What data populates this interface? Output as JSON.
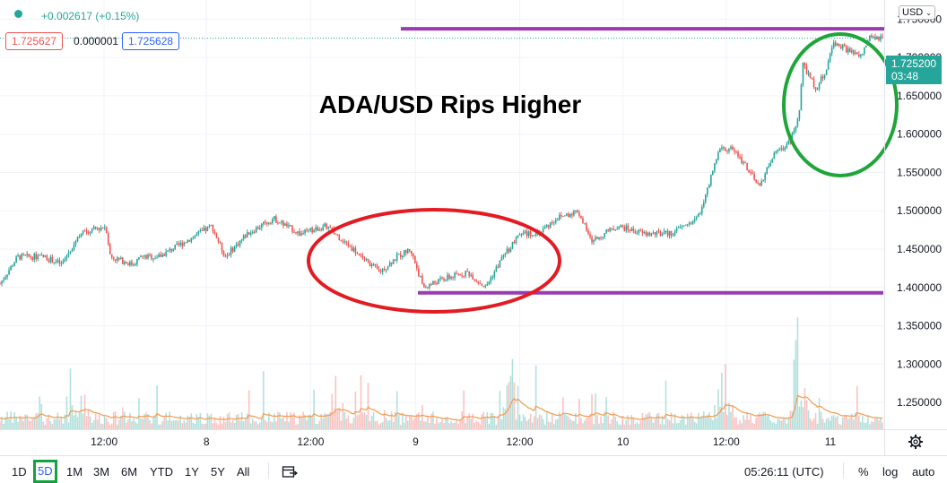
{
  "header": {
    "change": "+0.002617 (+0.15%)",
    "bid": "1.725627",
    "spread": "0.000001",
    "ask": "1.725628"
  },
  "currency": "USD",
  "price_tag": {
    "price": "1.725200",
    "countdown": "03:48"
  },
  "colors": {
    "up": "#26a69a",
    "down": "#ef5350",
    "red_circle": "#e31b23",
    "green_circle": "#1fa53a",
    "level_line": "#9b3bb0",
    "volume_ma": "#f29a4a"
  },
  "chart_data": {
    "type": "candlestick",
    "title": "ADA/USD Rips Higher",
    "x_ticks": [
      "12:00",
      "8",
      "12:00",
      "9",
      "12:00",
      "10",
      "12:00",
      "11"
    ],
    "y_ticks": [
      "1.750000",
      "1.700000",
      "1.650000",
      "1.600000",
      "1.550000",
      "1.500000",
      "1.450000",
      "1.400000",
      "1.350000",
      "1.300000",
      "1.250000"
    ],
    "ylim": [
      1.215,
      1.775
    ],
    "last_price": 1.7252,
    "close_path": [
      [
        0,
        1.405
      ],
      [
        0.02,
        1.44
      ],
      [
        0.05,
        1.44
      ],
      [
        0.07,
        1.43
      ],
      [
        0.09,
        1.47
      ],
      [
        0.12,
        1.48
      ],
      [
        0.125,
        1.44
      ],
      [
        0.15,
        1.43
      ],
      [
        0.16,
        1.44
      ],
      [
        0.18,
        1.44
      ],
      [
        0.21,
        1.46
      ],
      [
        0.24,
        1.48
      ],
      [
        0.255,
        1.44
      ],
      [
        0.28,
        1.47
      ],
      [
        0.31,
        1.49
      ],
      [
        0.34,
        1.47
      ],
      [
        0.37,
        1.48
      ],
      [
        0.39,
        1.46
      ],
      [
        0.41,
        1.44
      ],
      [
        0.43,
        1.42
      ],
      [
        0.45,
        1.44
      ],
      [
        0.465,
        1.45
      ],
      [
        0.48,
        1.4
      ],
      [
        0.5,
        1.41
      ],
      [
        0.53,
        1.42
      ],
      [
        0.55,
        1.4
      ],
      [
        0.57,
        1.44
      ],
      [
        0.59,
        1.47
      ],
      [
        0.61,
        1.47
      ],
      [
        0.63,
        1.49
      ],
      [
        0.655,
        1.5
      ],
      [
        0.67,
        1.46
      ],
      [
        0.7,
        1.48
      ],
      [
        0.73,
        1.47
      ],
      [
        0.76,
        1.47
      ],
      [
        0.79,
        1.49
      ],
      [
        0.8,
        1.52
      ],
      [
        0.815,
        1.58
      ],
      [
        0.83,
        1.58
      ],
      [
        0.845,
        1.56
      ],
      [
        0.86,
        1.53
      ],
      [
        0.875,
        1.57
      ],
      [
        0.895,
        1.59
      ],
      [
        0.905,
        1.62
      ],
      [
        0.91,
        1.69
      ],
      [
        0.925,
        1.66
      ],
      [
        0.935,
        1.68
      ],
      [
        0.945,
        1.72
      ],
      [
        0.96,
        1.71
      ],
      [
        0.975,
        1.7
      ],
      [
        0.985,
        1.725
      ],
      [
        1.0,
        1.7252
      ]
    ],
    "volume_spikes": [
      [
        0.09,
        0.3
      ],
      [
        0.38,
        0.35
      ],
      [
        0.58,
        0.55
      ],
      [
        0.82,
        0.55
      ],
      [
        0.905,
        0.95
      ]
    ],
    "annotations": {
      "resistance_level": 1.7375,
      "support_level": 1.393
    }
  },
  "timeframes": [
    "1D",
    "5D",
    "1M",
    "3M",
    "6M",
    "YTD",
    "1Y",
    "5Y",
    "All"
  ],
  "active_timeframe": "5D",
  "clock": "05:26:11 (UTC)",
  "bottom_right": {
    "percent": "%",
    "log": "log",
    "auto": "auto"
  },
  "icons": {
    "status": "status-dot-icon",
    "replay": "calendar-range-icon",
    "settings": "gear-icon"
  }
}
